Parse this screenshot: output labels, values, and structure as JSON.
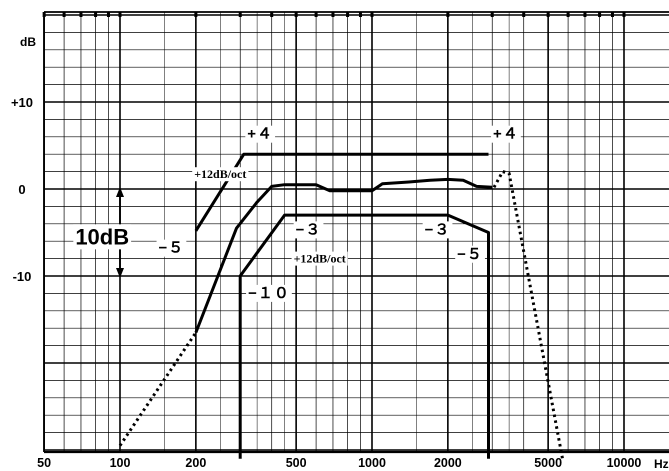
{
  "chart_data": {
    "type": "line",
    "title": "",
    "subtitle": "",
    "xlabel": "",
    "ylabel": "",
    "x_unit": "Hz",
    "y_unit": "dB",
    "x_scale": "log",
    "xlim": [
      50,
      12000
    ],
    "ylim": [
      -30,
      20
    ],
    "grid": true,
    "x_ticks": [
      50,
      100,
      200,
      500,
      1000,
      2000,
      5000,
      10000
    ],
    "x_tick_labels": [
      "50",
      "100",
      "200",
      "500",
      "1000",
      "2000",
      "5000",
      "10000"
    ],
    "y_ticks": [
      10,
      0,
      -10
    ],
    "y_tick_labels": [
      "+10",
      "0",
      "-10"
    ],
    "series": [
      {
        "style": "solid",
        "points": [
          [
            200,
            -4.8
          ],
          [
            310,
            4
          ],
          [
            2900,
            4
          ]
        ]
      },
      {
        "style": "solid",
        "points": [
          [
            200,
            -16.5
          ],
          [
            290,
            -4.5
          ],
          [
            350,
            -1.5
          ],
          [
            400,
            0.3
          ],
          [
            450,
            0.5
          ],
          [
            600,
            0.5
          ],
          [
            680,
            -0.2
          ],
          [
            1000,
            -0.2
          ],
          [
            1100,
            0.6
          ],
          [
            1400,
            0.8
          ],
          [
            1700,
            1
          ],
          [
            2000,
            1.1
          ],
          [
            2300,
            1
          ],
          [
            2600,
            0.3
          ],
          [
            3000,
            0.2
          ]
        ]
      },
      {
        "style": "solid",
        "points": [
          [
            300,
            -31
          ],
          [
            300,
            -10
          ],
          [
            450,
            -3
          ],
          [
            2000,
            -3
          ],
          [
            2900,
            -5
          ],
          [
            2900,
            -31
          ]
        ]
      },
      {
        "style": "dotted",
        "points": [
          [
            100,
            -29.5
          ],
          [
            200,
            -16.5
          ]
        ]
      },
      {
        "style": "dotted",
        "points": [
          [
            3050,
            0.2
          ],
          [
            3300,
            2
          ],
          [
            3500,
            1.8
          ],
          [
            5700,
            -31
          ]
        ]
      }
    ],
    "annotations": [
      {
        "text": "+４",
        "x": 360,
        "y": 6.3
      },
      {
        "text": "+４",
        "x": 3400,
        "y": 6.3
      },
      {
        "text": "+12dB/oct",
        "x": 250,
        "y": 1.7
      },
      {
        "text": "10dB",
        "x": 85,
        "y": -5.5
      },
      {
        "text": "−５",
        "x": 160,
        "y": -6.8
      },
      {
        "text": "−３",
        "x": 560,
        "y": -4.7
      },
      {
        "text": "−３",
        "x": 1820,
        "y": -4.7
      },
      {
        "text": "+12dB/oct",
        "x": 620,
        "y": -8
      },
      {
        "text": "−５",
        "x": 2450,
        "y": -7.5
      },
      {
        "text": "−１０",
        "x": 390,
        "y": -12
      }
    ],
    "scale_marker": {
      "x": 100,
      "y_top": 0,
      "y_bottom": -10
    }
  }
}
